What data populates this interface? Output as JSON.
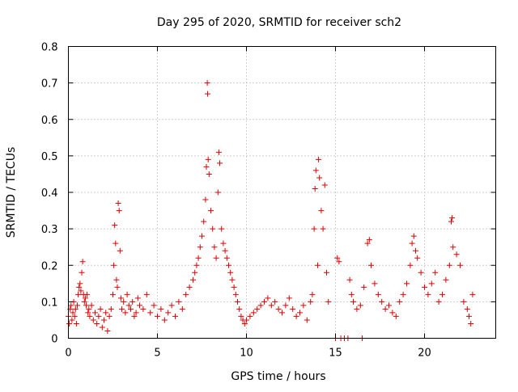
{
  "chart_data": {
    "type": "scatter",
    "title": "Day 295 of 2020, SRMTID for receiver sch2",
    "xlabel": "GPS time / hours",
    "ylabel": "SRMTID / TECUs",
    "xlim": [
      0,
      24
    ],
    "ylim": [
      0,
      0.8
    ],
    "x_ticks": [
      0,
      5,
      10,
      15,
      20
    ],
    "x_tick_labels": [
      "0",
      "5",
      "10",
      "15",
      "20"
    ],
    "y_ticks": [
      0,
      0.1,
      0.2,
      0.3,
      0.4,
      0.5,
      0.6,
      0.7,
      0.8
    ],
    "y_tick_labels": [
      "0",
      "0.1",
      "0.2",
      "0.3",
      "0.4",
      "0.5",
      "0.6",
      "0.7",
      "0.8"
    ],
    "grid": true,
    "marker": "+",
    "color": "#e00000",
    "series": [
      {
        "name": "SRMTID",
        "points": [
          [
            0.0,
            0.06
          ],
          [
            0.05,
            0.04
          ],
          [
            0.1,
            0.08
          ],
          [
            0.15,
            0.09
          ],
          [
            0.2,
            0.05
          ],
          [
            0.25,
            0.07
          ],
          [
            0.3,
            0.1
          ],
          [
            0.35,
            0.06
          ],
          [
            0.4,
            0.08
          ],
          [
            0.45,
            0.04
          ],
          [
            0.5,
            0.09
          ],
          [
            0.55,
            0.12
          ],
          [
            0.6,
            0.14
          ],
          [
            0.65,
            0.15
          ],
          [
            0.7,
            0.13
          ],
          [
            0.75,
            0.18
          ],
          [
            0.8,
            0.21
          ],
          [
            0.85,
            0.12
          ],
          [
            0.9,
            0.1
          ],
          [
            0.95,
            0.11
          ],
          [
            1.0,
            0.09
          ],
          [
            1.05,
            0.12
          ],
          [
            1.1,
            0.07
          ],
          [
            1.15,
            0.08
          ],
          [
            1.2,
            0.06
          ],
          [
            1.3,
            0.09
          ],
          [
            1.4,
            0.05
          ],
          [
            1.5,
            0.07
          ],
          [
            1.6,
            0.04
          ],
          [
            1.7,
            0.06
          ],
          [
            1.8,
            0.08
          ],
          [
            1.9,
            0.03
          ],
          [
            2.0,
            0.05
          ],
          [
            2.1,
            0.07
          ],
          [
            2.2,
            0.02
          ],
          [
            2.3,
            0.06
          ],
          [
            2.4,
            0.08
          ],
          [
            2.5,
            0.12
          ],
          [
            2.55,
            0.2
          ],
          [
            2.6,
            0.31
          ],
          [
            2.65,
            0.26
          ],
          [
            2.7,
            0.16
          ],
          [
            2.75,
            0.14
          ],
          [
            2.8,
            0.37
          ],
          [
            2.85,
            0.35
          ],
          [
            2.9,
            0.24
          ],
          [
            2.95,
            0.11
          ],
          [
            3.0,
            0.08
          ],
          [
            3.1,
            0.1
          ],
          [
            3.2,
            0.07
          ],
          [
            3.3,
            0.12
          ],
          [
            3.4,
            0.09
          ],
          [
            3.5,
            0.08
          ],
          [
            3.6,
            0.1
          ],
          [
            3.7,
            0.06
          ],
          [
            3.8,
            0.07
          ],
          [
            3.9,
            0.11
          ],
          [
            4.0,
            0.09
          ],
          [
            4.2,
            0.08
          ],
          [
            4.4,
            0.12
          ],
          [
            4.6,
            0.07
          ],
          [
            4.8,
            0.09
          ],
          [
            5.0,
            0.06
          ],
          [
            5.2,
            0.08
          ],
          [
            5.4,
            0.05
          ],
          [
            5.6,
            0.07
          ],
          [
            5.8,
            0.09
          ],
          [
            6.0,
            0.06
          ],
          [
            6.2,
            0.1
          ],
          [
            6.4,
            0.08
          ],
          [
            6.6,
            0.12
          ],
          [
            6.8,
            0.14
          ],
          [
            7.0,
            0.16
          ],
          [
            7.1,
            0.18
          ],
          [
            7.2,
            0.2
          ],
          [
            7.3,
            0.22
          ],
          [
            7.4,
            0.25
          ],
          [
            7.5,
            0.28
          ],
          [
            7.6,
            0.32
          ],
          [
            7.7,
            0.38
          ],
          [
            7.75,
            0.47
          ],
          [
            7.8,
            0.7
          ],
          [
            7.82,
            0.67
          ],
          [
            7.85,
            0.49
          ],
          [
            7.9,
            0.45
          ],
          [
            8.0,
            0.35
          ],
          [
            8.1,
            0.3
          ],
          [
            8.2,
            0.25
          ],
          [
            8.3,
            0.22
          ],
          [
            8.4,
            0.4
          ],
          [
            8.45,
            0.51
          ],
          [
            8.5,
            0.48
          ],
          [
            8.6,
            0.3
          ],
          [
            8.7,
            0.26
          ],
          [
            8.8,
            0.24
          ],
          [
            8.9,
            0.22
          ],
          [
            9.0,
            0.2
          ],
          [
            9.1,
            0.18
          ],
          [
            9.2,
            0.16
          ],
          [
            9.3,
            0.14
          ],
          [
            9.4,
            0.12
          ],
          [
            9.5,
            0.1
          ],
          [
            9.6,
            0.08
          ],
          [
            9.7,
            0.06
          ],
          [
            9.8,
            0.05
          ],
          [
            9.9,
            0.04
          ],
          [
            10.0,
            0.05
          ],
          [
            10.2,
            0.06
          ],
          [
            10.4,
            0.07
          ],
          [
            10.6,
            0.08
          ],
          [
            10.8,
            0.09
          ],
          [
            11.0,
            0.1
          ],
          [
            11.2,
            0.11
          ],
          [
            11.4,
            0.09
          ],
          [
            11.6,
            0.1
          ],
          [
            11.8,
            0.08
          ],
          [
            12.0,
            0.07
          ],
          [
            12.2,
            0.09
          ],
          [
            12.4,
            0.11
          ],
          [
            12.6,
            0.08
          ],
          [
            12.8,
            0.06
          ],
          [
            13.0,
            0.07
          ],
          [
            13.2,
            0.09
          ],
          [
            13.4,
            0.05
          ],
          [
            13.6,
            0.1
          ],
          [
            13.7,
            0.12
          ],
          [
            13.8,
            0.3
          ],
          [
            13.85,
            0.41
          ],
          [
            13.9,
            0.46
          ],
          [
            14.0,
            0.2
          ],
          [
            14.05,
            0.49
          ],
          [
            14.1,
            0.44
          ],
          [
            14.2,
            0.35
          ],
          [
            14.3,
            0.3
          ],
          [
            14.4,
            0.42
          ],
          [
            14.5,
            0.18
          ],
          [
            14.6,
            0.1
          ],
          [
            15.1,
            0.22
          ],
          [
            15.2,
            0.21
          ],
          [
            15.0,
            0.0
          ],
          [
            15.3,
            0.0
          ],
          [
            15.5,
            0.0
          ],
          [
            15.7,
            0.0
          ],
          [
            16.5,
            0.0
          ],
          [
            15.8,
            0.16
          ],
          [
            15.9,
            0.12
          ],
          [
            16.0,
            0.1
          ],
          [
            16.2,
            0.08
          ],
          [
            16.4,
            0.09
          ],
          [
            16.6,
            0.14
          ],
          [
            16.8,
            0.26
          ],
          [
            16.9,
            0.27
          ],
          [
            17.0,
            0.2
          ],
          [
            17.2,
            0.15
          ],
          [
            17.4,
            0.12
          ],
          [
            17.6,
            0.1
          ],
          [
            17.8,
            0.08
          ],
          [
            18.0,
            0.09
          ],
          [
            18.2,
            0.07
          ],
          [
            18.4,
            0.06
          ],
          [
            18.6,
            0.1
          ],
          [
            18.8,
            0.12
          ],
          [
            19.0,
            0.15
          ],
          [
            19.2,
            0.2
          ],
          [
            19.3,
            0.26
          ],
          [
            19.4,
            0.28
          ],
          [
            19.5,
            0.24
          ],
          [
            19.6,
            0.22
          ],
          [
            19.8,
            0.18
          ],
          [
            20.0,
            0.14
          ],
          [
            20.2,
            0.12
          ],
          [
            20.4,
            0.15
          ],
          [
            20.6,
            0.18
          ],
          [
            20.8,
            0.1
          ],
          [
            21.0,
            0.12
          ],
          [
            21.2,
            0.16
          ],
          [
            21.4,
            0.2
          ],
          [
            21.5,
            0.32
          ],
          [
            21.55,
            0.33
          ],
          [
            21.6,
            0.25
          ],
          [
            21.8,
            0.23
          ],
          [
            22.0,
            0.2
          ],
          [
            22.2,
            0.1
          ],
          [
            22.4,
            0.08
          ],
          [
            22.5,
            0.06
          ],
          [
            22.6,
            0.04
          ],
          [
            22.7,
            0.12
          ]
        ]
      }
    ]
  }
}
